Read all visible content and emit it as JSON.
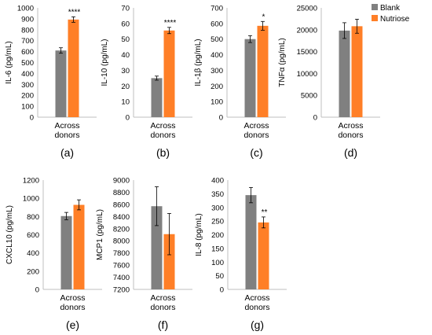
{
  "legend": [
    {
      "label": "Blank",
      "color": "#808080"
    },
    {
      "label": "Nutriose",
      "color": "#ff7f27"
    }
  ],
  "chart_data": [
    {
      "type": "bar",
      "panel": "(a)",
      "categories": [
        "Across donors"
      ],
      "ylabel": "IL-6 (pg/mL)",
      "ylim": [
        0,
        1000
      ],
      "yticks": [
        0,
        100,
        200,
        300,
        400,
        500,
        600,
        700,
        800,
        900,
        1000
      ],
      "series": [
        {
          "name": "Blank",
          "values": [
            610
          ],
          "error": [
            25
          ]
        },
        {
          "name": "Nutriose",
          "values": [
            893
          ],
          "error": [
            25
          ]
        }
      ],
      "significance": "****"
    },
    {
      "type": "bar",
      "panel": "(b)",
      "categories": [
        "Across donors"
      ],
      "ylabel": "IL-10 (pg/mL)",
      "ylim": [
        0,
        70
      ],
      "yticks": [
        0,
        10,
        20,
        30,
        40,
        50,
        60,
        70
      ],
      "series": [
        {
          "name": "Blank",
          "values": [
            25
          ],
          "error": [
            1.3
          ]
        },
        {
          "name": "Nutriose",
          "values": [
            55.5
          ],
          "error": [
            2
          ]
        }
      ],
      "significance": "****"
    },
    {
      "type": "bar",
      "panel": "(c)",
      "categories": [
        "Across donors"
      ],
      "ylabel": "IL-1β (pg/mL)",
      "ylim": [
        0,
        700
      ],
      "yticks": [
        0,
        100,
        200,
        300,
        400,
        500,
        600,
        700
      ],
      "series": [
        {
          "name": "Blank",
          "values": [
            500
          ],
          "error": [
            22
          ]
        },
        {
          "name": "Nutriose",
          "values": [
            585
          ],
          "error": [
            28
          ]
        }
      ],
      "significance": "*"
    },
    {
      "type": "bar",
      "panel": "(d)",
      "categories": [
        "Across donors"
      ],
      "ylabel": "TNFα (pg/mL)",
      "ylim": [
        0,
        25000
      ],
      "yticks": [
        0,
        5000,
        10000,
        15000,
        20000,
        25000
      ],
      "series": [
        {
          "name": "Blank",
          "values": [
            19800
          ],
          "error": [
            1800
          ]
        },
        {
          "name": "Nutriose",
          "values": [
            20800
          ],
          "error": [
            1600
          ]
        }
      ],
      "significance": ""
    },
    {
      "type": "bar",
      "panel": "(e)",
      "categories": [
        "Across donors"
      ],
      "ylabel": "CXCL10 (pg/mL)",
      "ylim": [
        0,
        1200
      ],
      "yticks": [
        0,
        200,
        400,
        600,
        800,
        1000,
        1200
      ],
      "series": [
        {
          "name": "Blank",
          "values": [
            805
          ],
          "error": [
            40
          ]
        },
        {
          "name": "Nutriose",
          "values": [
            928
          ],
          "error": [
            55
          ]
        }
      ],
      "significance": ""
    },
    {
      "type": "bar",
      "panel": "(f)",
      "categories": [
        "Across donors"
      ],
      "ylabel": "MCP1 (pg/mL)",
      "ylim": [
        7200,
        9000
      ],
      "yticks": [
        7200,
        7400,
        7600,
        7800,
        8000,
        8200,
        8400,
        8600,
        8800,
        9000
      ],
      "series": [
        {
          "name": "Blank",
          "values": [
            8570
          ],
          "error": [
            320
          ]
        },
        {
          "name": "Nutriose",
          "values": [
            8110
          ],
          "error": [
            340
          ]
        }
      ],
      "significance": ""
    },
    {
      "type": "bar",
      "panel": "(g)",
      "categories": [
        "Across donors"
      ],
      "ylabel": "IL-8 (pg/mL)",
      "ylim": [
        0,
        400
      ],
      "yticks": [
        0,
        50,
        100,
        150,
        200,
        250,
        300,
        350,
        400
      ],
      "series": [
        {
          "name": "Blank",
          "values": [
            345
          ],
          "error": [
            28
          ]
        },
        {
          "name": "Nutriose",
          "values": [
            245
          ],
          "error": [
            20
          ]
        }
      ],
      "significance": "**"
    }
  ]
}
